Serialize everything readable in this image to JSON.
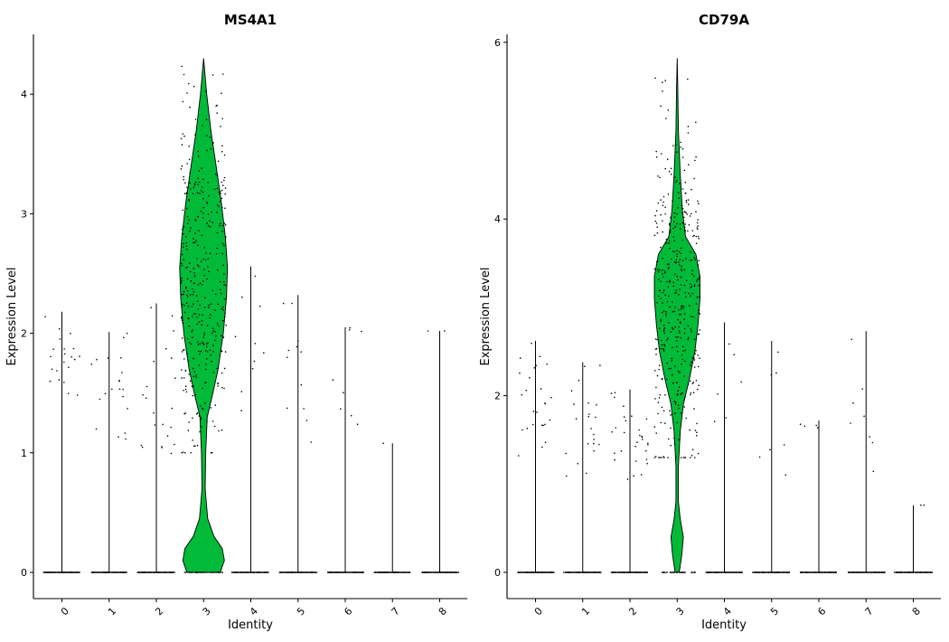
{
  "chart_data": [
    {
      "type": "violin",
      "title": "MS4A1",
      "xlabel": "Identity",
      "ylabel": "Expression Level",
      "categories": [
        "0",
        "1",
        "2",
        "3",
        "4",
        "5",
        "6",
        "7",
        "8"
      ],
      "y_ticks": [
        "0",
        "1",
        "2",
        "3",
        "4"
      ],
      "ylim": [
        -0.2,
        4.5
      ],
      "fill_color": "#00ba38",
      "max_values": [
        2.18,
        2.01,
        2.25,
        4.3,
        2.56,
        2.32,
        2.05,
        1.08,
        2.02
      ],
      "nonzero_range": [
        [
          1.45,
          2.18
        ],
        [
          1.1,
          2.0
        ],
        [
          0.95,
          2.25
        ],
        [
          1.0,
          4.3
        ],
        [
          1.35,
          2.55
        ],
        [
          1.07,
          2.3
        ],
        [
          1.2,
          2.05
        ],
        [
          1.08,
          1.08
        ],
        [
          2.02,
          2.02
        ]
      ],
      "nonzero_counts": [
        22,
        20,
        22,
        380,
        10,
        12,
        8,
        1,
        2
      ],
      "violin_3_profile": [
        [
          0.0,
          0.16
        ],
        [
          0.1,
          0.2
        ],
        [
          0.2,
          0.18
        ],
        [
          0.3,
          0.1
        ],
        [
          0.45,
          0.04
        ],
        [
          0.7,
          0.015
        ],
        [
          1.0,
          0.02
        ],
        [
          1.3,
          0.035
        ],
        [
          1.5,
          0.09
        ],
        [
          1.7,
          0.14
        ],
        [
          2.0,
          0.19
        ],
        [
          2.3,
          0.22
        ],
        [
          2.55,
          0.23
        ],
        [
          2.8,
          0.21
        ],
        [
          3.1,
          0.17
        ],
        [
          3.4,
          0.12
        ],
        [
          3.7,
          0.07
        ],
        [
          4.0,
          0.03
        ],
        [
          4.3,
          0.0
        ]
      ]
    },
    {
      "type": "violin",
      "title": "CD79A",
      "xlabel": "Identity",
      "ylabel": "Expression Level",
      "categories": [
        "0",
        "1",
        "2",
        "3",
        "4",
        "5",
        "6",
        "7",
        "8"
      ],
      "y_ticks": [
        "0",
        "2",
        "4",
        "6"
      ],
      "ylim": [
        -0.3,
        6.1
      ],
      "fill_color": "#00ba38",
      "max_values": [
        2.62,
        2.38,
        2.07,
        5.82,
        2.83,
        2.62,
        1.72,
        2.73,
        0.76
      ],
      "nonzero_range": [
        [
          1.25,
          2.62
        ],
        [
          1.05,
          2.38
        ],
        [
          1.05,
          2.07
        ],
        [
          1.3,
          5.82
        ],
        [
          1.7,
          2.8
        ],
        [
          1.05,
          2.62
        ],
        [
          1.62,
          1.72
        ],
        [
          0.95,
          2.73
        ],
        [
          0.76,
          0.76
        ]
      ],
      "nonzero_counts": [
        26,
        22,
        30,
        420,
        6,
        7,
        4,
        8,
        2
      ],
      "violin_3_profile": [
        [
          0.0,
          0.02
        ],
        [
          0.2,
          0.045
        ],
        [
          0.4,
          0.06
        ],
        [
          0.6,
          0.03
        ],
        [
          0.8,
          0.012
        ],
        [
          1.2,
          0.012
        ],
        [
          1.6,
          0.03
        ],
        [
          1.9,
          0.06
        ],
        [
          2.2,
          0.12
        ],
        [
          2.5,
          0.17
        ],
        [
          2.8,
          0.2
        ],
        [
          3.1,
          0.22
        ],
        [
          3.35,
          0.22
        ],
        [
          3.6,
          0.18
        ],
        [
          3.8,
          0.08
        ],
        [
          4.1,
          0.05
        ],
        [
          4.5,
          0.03
        ],
        [
          5.0,
          0.012
        ],
        [
          5.5,
          0.006
        ],
        [
          5.82,
          0.0
        ]
      ]
    }
  ]
}
